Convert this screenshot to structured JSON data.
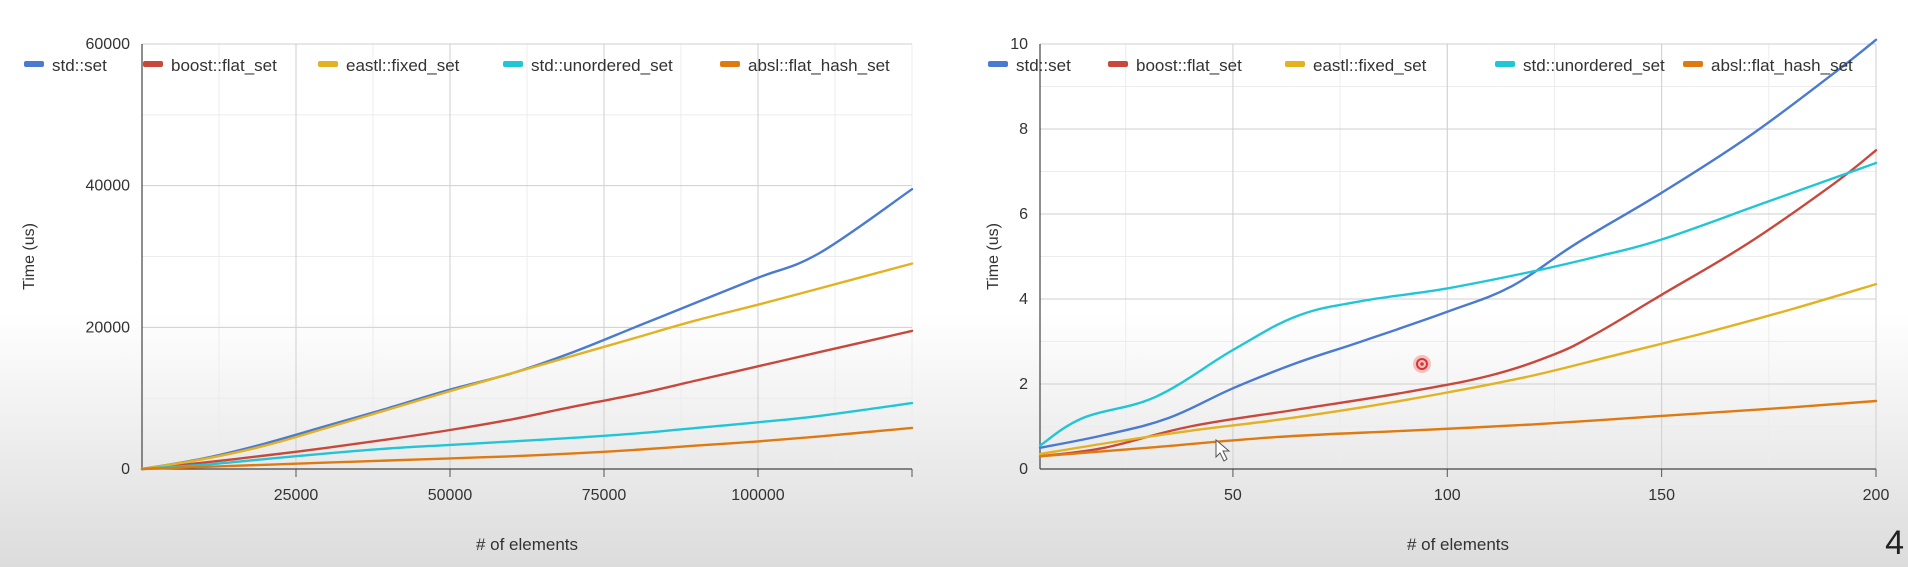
{
  "colors": {
    "std_set": "#4a7bd0",
    "boost_flat_set": "#c9483c",
    "eastl_fixed_set": "#e2b221",
    "std_unordered_set": "#20c6d6",
    "absl_flat_hash_set": "#df7a10"
  },
  "slide_number": "4",
  "chart_data": [
    {
      "type": "line",
      "xlabel": "# of elements",
      "ylabel": "Time (us)",
      "xlim": [
        0,
        125000
      ],
      "ylim": [
        0,
        60000
      ],
      "xticks": [
        25000,
        50000,
        75000,
        100000
      ],
      "yticks": [
        0,
        20000,
        40000,
        60000
      ],
      "grid": true,
      "legend": "top",
      "series": [
        {
          "name": "std::set",
          "color_key": "std_set",
          "points": [
            [
              0,
              0
            ],
            [
              10000,
              1500
            ],
            [
              20000,
              3600
            ],
            [
              30000,
              6100
            ],
            [
              40000,
              8600
            ],
            [
              50000,
              11200
            ],
            [
              60000,
              13500
            ],
            [
              70000,
              16500
            ],
            [
              80000,
              20000
            ],
            [
              90000,
              23500
            ],
            [
              100000,
              27000
            ],
            [
              110000,
              30500
            ],
            [
              125000,
              39500
            ]
          ]
        },
        {
          "name": "boost::flat_set",
          "color_key": "boost_flat_set",
          "points": [
            [
              0,
              0
            ],
            [
              10000,
              900
            ],
            [
              20000,
              1900
            ],
            [
              30000,
              3000
            ],
            [
              40000,
              4200
            ],
            [
              50000,
              5500
            ],
            [
              60000,
              7000
            ],
            [
              70000,
              8800
            ],
            [
              80000,
              10500
            ],
            [
              90000,
              12500
            ],
            [
              100000,
              14500
            ],
            [
              110000,
              16500
            ],
            [
              125000,
              19500
            ]
          ]
        },
        {
          "name": "eastl::fixed_set",
          "color_key": "eastl_fixed_set",
          "points": [
            [
              0,
              0
            ],
            [
              10000,
              1400
            ],
            [
              20000,
              3300
            ],
            [
              30000,
              5800
            ],
            [
              40000,
              8400
            ],
            [
              50000,
              11000
            ],
            [
              60000,
              13500
            ],
            [
              70000,
              16000
            ],
            [
              80000,
              18500
            ],
            [
              90000,
              21000
            ],
            [
              100000,
              23200
            ],
            [
              110000,
              25500
            ],
            [
              125000,
              29000
            ]
          ]
        },
        {
          "name": "std::unordered_set",
          "color_key": "std_unordered_set",
          "points": [
            [
              0,
              0
            ],
            [
              10000,
              600
            ],
            [
              20000,
              1400
            ],
            [
              30000,
              2200
            ],
            [
              40000,
              2900
            ],
            [
              50000,
              3400
            ],
            [
              60000,
              3900
            ],
            [
              70000,
              4400
            ],
            [
              80000,
              5000
            ],
            [
              90000,
              5800
            ],
            [
              100000,
              6600
            ],
            [
              110000,
              7500
            ],
            [
              125000,
              9300
            ]
          ]
        },
        {
          "name": "absl::flat_hash_set",
          "color_key": "absl_flat_hash_set",
          "points": [
            [
              0,
              0
            ],
            [
              10000,
              300
            ],
            [
              20000,
              600
            ],
            [
              30000,
              900
            ],
            [
              40000,
              1200
            ],
            [
              50000,
              1500
            ],
            [
              60000,
              1800
            ],
            [
              70000,
              2200
            ],
            [
              80000,
              2700
            ],
            [
              90000,
              3300
            ],
            [
              100000,
              3900
            ],
            [
              110000,
              4600
            ],
            [
              125000,
              5800
            ]
          ]
        }
      ]
    },
    {
      "type": "line",
      "xlabel": "# of elements",
      "ylabel": "Time (us)",
      "xlim": [
        5,
        200
      ],
      "ylim": [
        0,
        10
      ],
      "xticks": [
        50,
        100,
        150,
        200
      ],
      "yticks": [
        0,
        2,
        4,
        6,
        8,
        10
      ],
      "grid": true,
      "legend": "top",
      "series": [
        {
          "name": "std::set",
          "color_key": "std_set",
          "points": [
            [
              5,
              0.5
            ],
            [
              20,
              0.8
            ],
            [
              35,
              1.2
            ],
            [
              50,
              1.9
            ],
            [
              65,
              2.5
            ],
            [
              80,
              3.0
            ],
            [
              100,
              3.7
            ],
            [
              115,
              4.3
            ],
            [
              130,
              5.3
            ],
            [
              150,
              6.5
            ],
            [
              170,
              7.8
            ],
            [
              190,
              9.3
            ],
            [
              200,
              10.1
            ]
          ]
        },
        {
          "name": "boost::flat_set",
          "color_key": "boost_flat_set",
          "points": [
            [
              5,
              0.3
            ],
            [
              20,
              0.5
            ],
            [
              40,
              1.0
            ],
            [
              65,
              1.4
            ],
            [
              90,
              1.8
            ],
            [
              110,
              2.2
            ],
            [
              125,
              2.7
            ],
            [
              135,
              3.2
            ],
            [
              150,
              4.1
            ],
            [
              170,
              5.3
            ],
            [
              190,
              6.7
            ],
            [
              200,
              7.5
            ]
          ]
        },
        {
          "name": "eastl::fixed_set",
          "color_key": "eastl_fixed_set",
          "points": [
            [
              5,
              0.35
            ],
            [
              20,
              0.6
            ],
            [
              40,
              0.9
            ],
            [
              60,
              1.15
            ],
            [
              80,
              1.45
            ],
            [
              100,
              1.8
            ],
            [
              120,
              2.2
            ],
            [
              140,
              2.7
            ],
            [
              160,
              3.2
            ],
            [
              180,
              3.75
            ],
            [
              200,
              4.35
            ]
          ]
        },
        {
          "name": "std::unordered_set",
          "color_key": "std_unordered_set",
          "points": [
            [
              5,
              0.55
            ],
            [
              15,
              1.2
            ],
            [
              32,
              1.7
            ],
            [
              50,
              2.8
            ],
            [
              65,
              3.6
            ],
            [
              80,
              3.95
            ],
            [
              100,
              4.25
            ],
            [
              120,
              4.65
            ],
            [
              135,
              5.0
            ],
            [
              150,
              5.4
            ],
            [
              175,
              6.3
            ],
            [
              200,
              7.2
            ]
          ]
        },
        {
          "name": "absl::flat_hash_set",
          "color_key": "absl_flat_hash_set",
          "points": [
            [
              5,
              0.3
            ],
            [
              30,
              0.5
            ],
            [
              60,
              0.75
            ],
            [
              90,
              0.9
            ],
            [
              120,
              1.05
            ],
            [
              150,
              1.25
            ],
            [
              180,
              1.45
            ],
            [
              200,
              1.6
            ]
          ]
        }
      ]
    }
  ]
}
